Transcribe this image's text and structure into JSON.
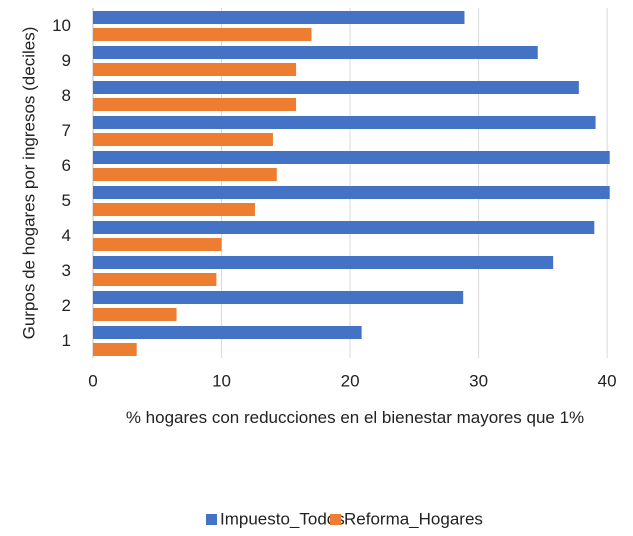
{
  "chart_data": {
    "type": "hbar",
    "x_label": "% hogares con reducciones en el bienestar mayores que 1%",
    "y_label": "Gurpos de hogares por ingresos (deciles)",
    "categories": [
      "1",
      "2",
      "3",
      "4",
      "5",
      "6",
      "7",
      "8",
      "9",
      "10"
    ],
    "series": [
      {
        "name": "Impuesto_Todos",
        "color": "#4472c4",
        "values": [
          20.9,
          28.8,
          35.8,
          39.0,
          40.2,
          40.2,
          39.1,
          37.8,
          34.6,
          28.9
        ]
      },
      {
        "name": "Reforma_Hogares",
        "color": "#ed7d31",
        "values": [
          3.4,
          6.5,
          9.6,
          10.0,
          12.6,
          14.3,
          14.0,
          15.8,
          15.8,
          17.0
        ]
      }
    ],
    "xlim": [
      0,
      40.3
    ],
    "xticks": [
      0,
      10,
      20,
      30,
      40
    ],
    "grid": true,
    "legend": "bottom"
  }
}
